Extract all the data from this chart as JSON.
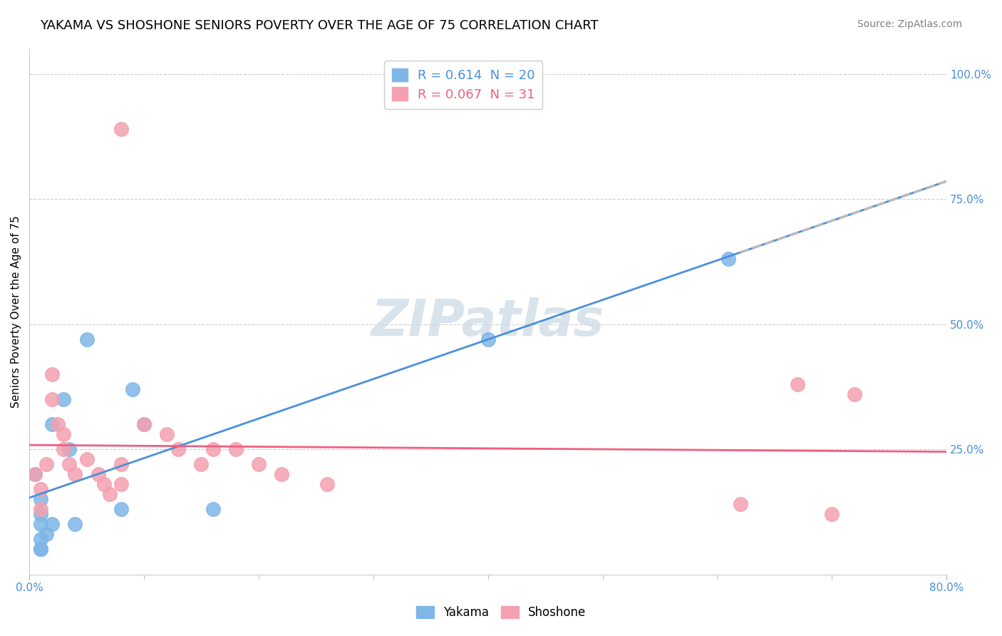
{
  "title": "YAKAMA VS SHOSHONE SENIORS POVERTY OVER THE AGE OF 75 CORRELATION CHART",
  "source_text": "Source: ZipAtlas.com",
  "ylabel": "Seniors Poverty Over the Age of 75",
  "xlim": [
    0.0,
    0.8
  ],
  "ylim": [
    0.0,
    1.05
  ],
  "ytick_labels": [
    "25.0%",
    "50.0%",
    "75.0%",
    "100.0%"
  ],
  "ytick_positions": [
    0.25,
    0.5,
    0.75,
    1.0
  ],
  "grid_color": "#cccccc",
  "yakama_R": "0.614",
  "yakama_N": "20",
  "shoshone_R": "0.067",
  "shoshone_N": "31",
  "yakama_color": "#7EB6E8",
  "shoshone_color": "#F4A0B0",
  "yakama_line_color": "#4A90D9",
  "shoshone_line_color": "#F06080",
  "trend_ext_color": "#bbbbbb",
  "yakama_x": [
    0.005,
    0.01,
    0.01,
    0.01,
    0.015,
    0.02,
    0.03,
    0.035,
    0.04,
    0.05,
    0.09,
    0.1,
    0.4,
    0.61,
    0.02,
    0.01,
    0.01,
    0.01,
    0.08,
    0.16
  ],
  "yakama_y": [
    0.2,
    0.15,
    0.12,
    0.1,
    0.08,
    0.3,
    0.35,
    0.25,
    0.1,
    0.47,
    0.37,
    0.3,
    0.47,
    0.63,
    0.1,
    0.07,
    0.05,
    0.05,
    0.13,
    0.13
  ],
  "shoshone_x": [
    0.005,
    0.01,
    0.01,
    0.015,
    0.02,
    0.02,
    0.025,
    0.03,
    0.03,
    0.035,
    0.04,
    0.05,
    0.06,
    0.065,
    0.07,
    0.08,
    0.08,
    0.1,
    0.12,
    0.13,
    0.15,
    0.16,
    0.18,
    0.2,
    0.22,
    0.26,
    0.62,
    0.67,
    0.7,
    0.72,
    0.08
  ],
  "shoshone_y": [
    0.2,
    0.17,
    0.13,
    0.22,
    0.4,
    0.35,
    0.3,
    0.28,
    0.25,
    0.22,
    0.2,
    0.23,
    0.2,
    0.18,
    0.16,
    0.22,
    0.18,
    0.3,
    0.28,
    0.25,
    0.22,
    0.25,
    0.25,
    0.22,
    0.2,
    0.18,
    0.14,
    0.38,
    0.12,
    0.36,
    0.89
  ],
  "watermark_text": "ZIPatlas",
  "watermark_color": "#d0dce8",
  "watermark_alpha": 0.8,
  "title_fontsize": 13,
  "label_fontsize": 11,
  "tick_fontsize": 11,
  "source_fontsize": 10
}
